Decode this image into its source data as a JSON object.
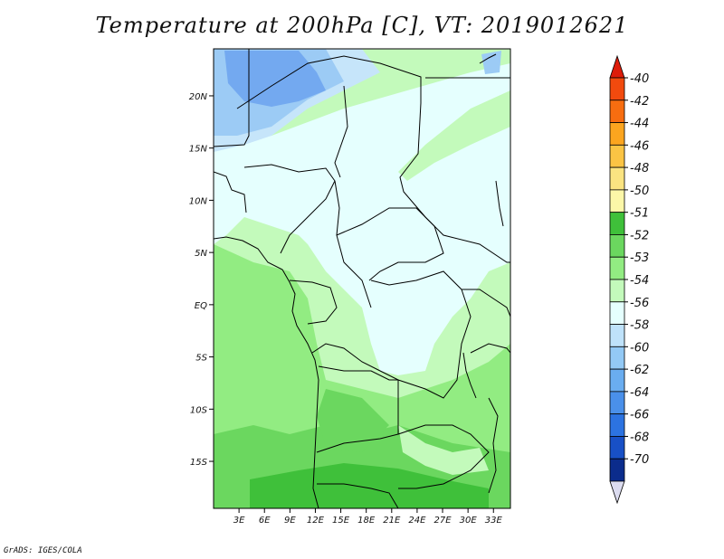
{
  "title": "Temperature at 200hPa [C], VT: 2019012621",
  "credit": "GrADS: IGES/COLA",
  "map": {
    "lat_labels": [
      "20N",
      "15N",
      "10N",
      "5N",
      "EQ",
      "5S",
      "10S",
      "15S"
    ],
    "lon_labels": [
      "3E",
      "6E",
      "9E",
      "12E",
      "15E",
      "18E",
      "21E",
      "24E",
      "27E",
      "30E",
      "33E"
    ],
    "lon_range": [
      0,
      35
    ],
    "lat_range": [
      -19.5,
      24.5
    ]
  },
  "colorbar": {
    "levels": [
      "-40",
      "-42",
      "-44",
      "-46",
      "-48",
      "-50",
      "-51",
      "-52",
      "-53",
      "-54",
      "-56",
      "-58",
      "-60",
      "-62",
      "-64",
      "-66",
      "-68",
      "-70"
    ],
    "colors": [
      "#dd1c0a",
      "#f14a0e",
      "#f76d10",
      "#fca51f",
      "#fbc444",
      "#fbe481",
      "#fcf7a8",
      "#3fc03a",
      "#6bd75f",
      "#92ec82",
      "#c3fabb",
      "#e5fffe",
      "#bfe2fa",
      "#93c9f5",
      "#6aadf0",
      "#4a90ea",
      "#2c73e1",
      "#1850c6",
      "#0b2c8c",
      "#dcdcf0"
    ]
  },
  "field_colors": {
    "very_cold": "#73a9f0",
    "cold": "#9ccbf5",
    "cool": "#c6e5fa",
    "neutral": "#e5fffe",
    "mild": "#c3fabb",
    "warm": "#92ec82",
    "warmer": "#6bd75f",
    "warmest": "#3fc03a"
  }
}
